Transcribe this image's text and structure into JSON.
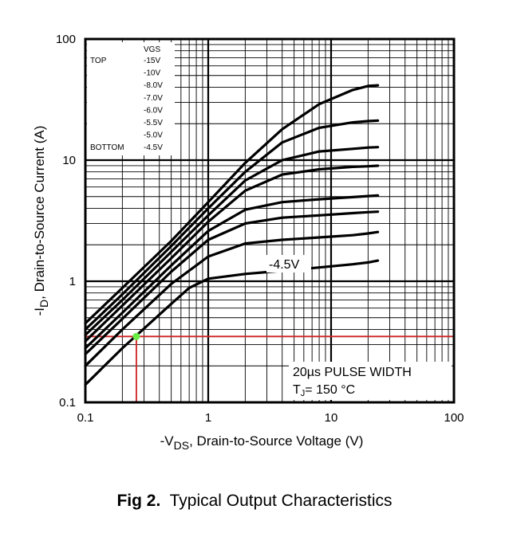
{
  "chart_data": {
    "type": "line",
    "xscale": "log",
    "yscale": "log",
    "xlim": [
      0.1,
      100
    ],
    "ylim": [
      0.1,
      100
    ],
    "grid": true,
    "x_ticks": [
      "0.1",
      "1",
      "10",
      "100"
    ],
    "y_ticks": [
      "100",
      "10",
      "1",
      "0.1"
    ],
    "xlabel": {
      "prefix": "-V",
      "subscript": "DS",
      "suffix": ",  Drain-to-Source Voltage (V)"
    },
    "ylabel": {
      "prefix": "-I",
      "subscript": "D",
      "suffix": ",  Drain-to-Source Current (A)"
    },
    "legend": {
      "header": "VGS",
      "top_label": "TOP",
      "bottom_label": "BOTTOM",
      "entries": [
        "-15V",
        "-10V",
        "-8.0V",
        "-7.0V",
        "-6.0V",
        "-5.5V",
        "-5.0V",
        "-4.5V"
      ]
    },
    "curve_label": "-4.5V",
    "note_line1": "20µs PULSE WIDTH",
    "note_line2_prefix": "T",
    "note_line2_sub": "J",
    "note_line2_suffix": "= 150 °C",
    "reference_point": {
      "x": 0.26,
      "y": 0.35
    },
    "series": [
      {
        "x": [
          0.1,
          0.2,
          0.5,
          1,
          2,
          4,
          8,
          15,
          20,
          24
        ],
        "y": [
          0.45,
          0.88,
          2.15,
          4.5,
          9.5,
          18,
          29,
          38,
          41,
          41.5
        ]
      },
      {
        "x": [
          0.1,
          0.2,
          0.5,
          1,
          2,
          4,
          8,
          15,
          20,
          24
        ],
        "y": [
          0.4,
          0.78,
          1.95,
          4.0,
          8.0,
          14,
          18.5,
          20.5,
          21,
          21.2
        ]
      },
      {
        "x": [
          0.1,
          0.2,
          0.5,
          1,
          2,
          4,
          8,
          15,
          20,
          24
        ],
        "y": [
          0.36,
          0.7,
          1.75,
          3.5,
          6.8,
          10,
          11.8,
          12.4,
          12.7,
          12.8
        ]
      },
      {
        "x": [
          0.1,
          0.2,
          0.5,
          1,
          2,
          4,
          8,
          15,
          20,
          24
        ],
        "y": [
          0.32,
          0.63,
          1.55,
          3.1,
          5.6,
          7.6,
          8.4,
          8.8,
          8.9,
          9.0
        ]
      },
      {
        "x": [
          0.1,
          0.2,
          0.5,
          1,
          2,
          4,
          8,
          15,
          20,
          24
        ],
        "y": [
          0.28,
          0.55,
          1.35,
          2.6,
          3.9,
          4.5,
          4.75,
          4.95,
          5.05,
          5.1
        ]
      },
      {
        "x": [
          0.1,
          0.2,
          0.5,
          1,
          2,
          4,
          8,
          15,
          20,
          24
        ],
        "y": [
          0.25,
          0.49,
          1.2,
          2.2,
          3.0,
          3.35,
          3.5,
          3.65,
          3.72,
          3.75
        ]
      },
      {
        "x": [
          0.1,
          0.2,
          0.5,
          1,
          2,
          4,
          8,
          15,
          20,
          24
        ],
        "y": [
          0.2,
          0.4,
          0.95,
          1.6,
          2.05,
          2.2,
          2.3,
          2.4,
          2.48,
          2.55
        ]
      },
      {
        "x": [
          0.1,
          0.2,
          0.5,
          0.7,
          1,
          2,
          4,
          8,
          15,
          20,
          24
        ],
        "y": [
          0.14,
          0.28,
          0.65,
          0.88,
          1.05,
          1.15,
          1.22,
          1.3,
          1.38,
          1.43,
          1.48
        ]
      }
    ]
  },
  "colors": {
    "curve": "#000000",
    "reference": "#cc2222",
    "marker": "#66ee44"
  },
  "caption": {
    "bold": "Fig 2.",
    "text": "Typical Output Characteristics"
  }
}
